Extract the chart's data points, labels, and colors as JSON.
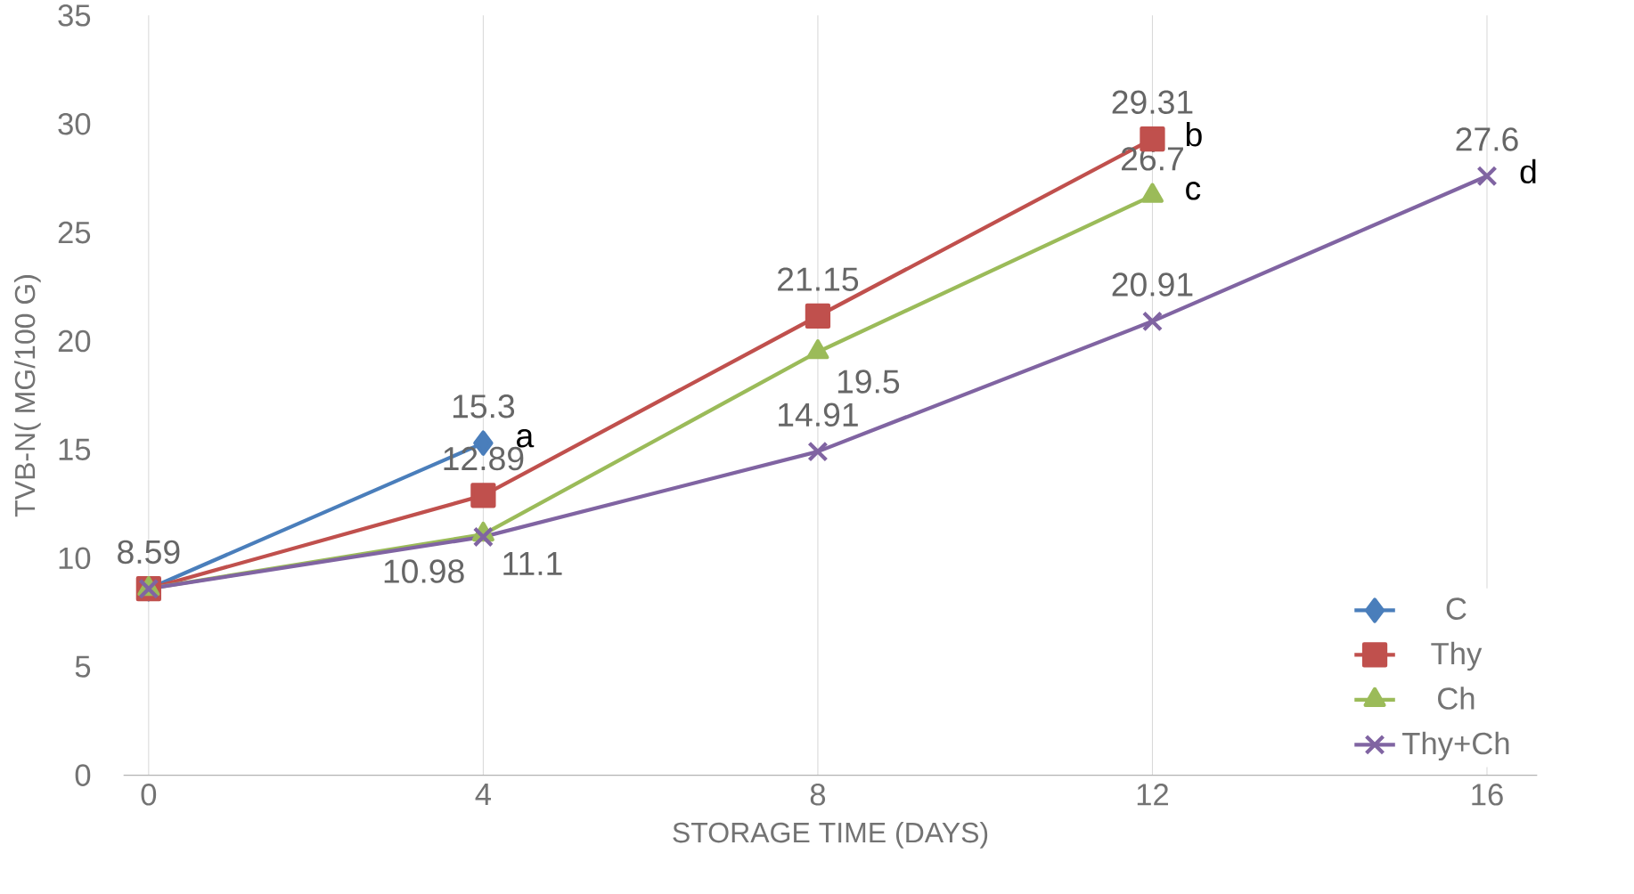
{
  "chart_data": {
    "type": "line",
    "xlabel": "STORAGE TIME (DAYS)",
    "ylabel": "TVB-N( MG/100 G)",
    "xlim": [
      -0.3,
      16.6
    ],
    "xticks": [
      0,
      4,
      8,
      12,
      16
    ],
    "ylim": [
      0,
      35
    ],
    "yticks": [
      0,
      5,
      10,
      15,
      20,
      25,
      30,
      35
    ],
    "grid": "x",
    "legend": "bottom right",
    "series": [
      {
        "name": "C",
        "color": "#4a7ebb",
        "marker": "diamond",
        "x": [
          0,
          4
        ],
        "values": [
          8.59,
          15.3
        ],
        "value_labels": [
          null,
          "15.3"
        ]
      },
      {
        "name": "Thy",
        "color": "#c0504d",
        "marker": "square",
        "x": [
          0,
          4,
          8,
          12
        ],
        "values": [
          8.59,
          12.89,
          21.15,
          29.31
        ],
        "value_labels": [
          null,
          "12.89",
          "21.15",
          "29.31"
        ]
      },
      {
        "name": "Ch",
        "color": "#9bbb59",
        "marker": "triangle",
        "x": [
          0,
          4,
          8,
          12
        ],
        "values": [
          8.59,
          11.1,
          19.5,
          26.7
        ],
        "value_labels": [
          "8.59",
          "11.1",
          "19.5",
          "26.7"
        ]
      },
      {
        "name": "Thy+Ch",
        "color": "#8064a2",
        "marker": "cross",
        "x": [
          0,
          4,
          8,
          12,
          16
        ],
        "values": [
          8.59,
          10.98,
          14.91,
          20.91,
          27.6
        ],
        "value_labels": [
          null,
          "10.98",
          "14.91",
          "20.91",
          "27.6"
        ]
      }
    ],
    "annotations": [
      {
        "text": "a",
        "x": 4,
        "y": 15.3
      },
      {
        "text": "b",
        "x": 12,
        "y": 29.31
      },
      {
        "text": "c",
        "x": 12,
        "y": 26.7
      },
      {
        "text": "d",
        "x": 16,
        "y": 27.6
      }
    ]
  }
}
